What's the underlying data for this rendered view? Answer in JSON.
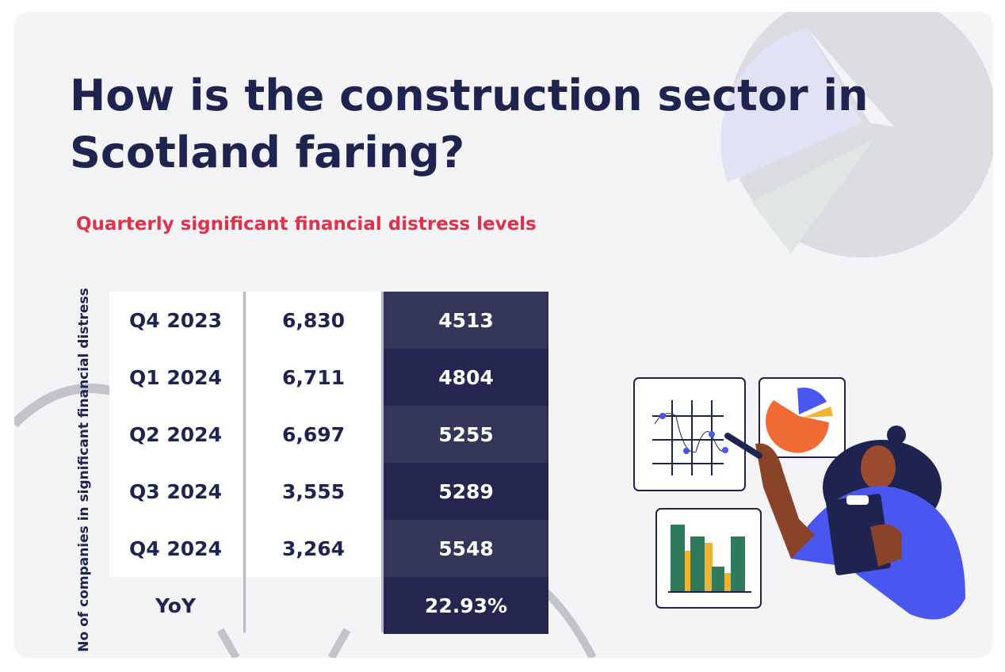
{
  "header": {
    "title_lines": [
      "How is the construction sector in",
      "Scotland faring?"
    ],
    "subtitle": "Quarterly significant financial distress levels"
  },
  "axis_label": "No of companies in significant financial distress",
  "table": {
    "rows": [
      {
        "period": "Q4 2023",
        "companies": "6,830",
        "distress": "4513"
      },
      {
        "period": "Q1 2024",
        "companies": "6,711",
        "distress": "4804"
      },
      {
        "period": "Q2 2024",
        "companies": "6,697",
        "distress": "5255"
      },
      {
        "period": "Q3 2024",
        "companies": "3,555",
        "distress": "5289"
      },
      {
        "period": "Q4 2024",
        "companies": "3,264",
        "distress": "5548"
      }
    ],
    "yoy": {
      "label": "YoY",
      "value": "22.93%"
    }
  }
}
